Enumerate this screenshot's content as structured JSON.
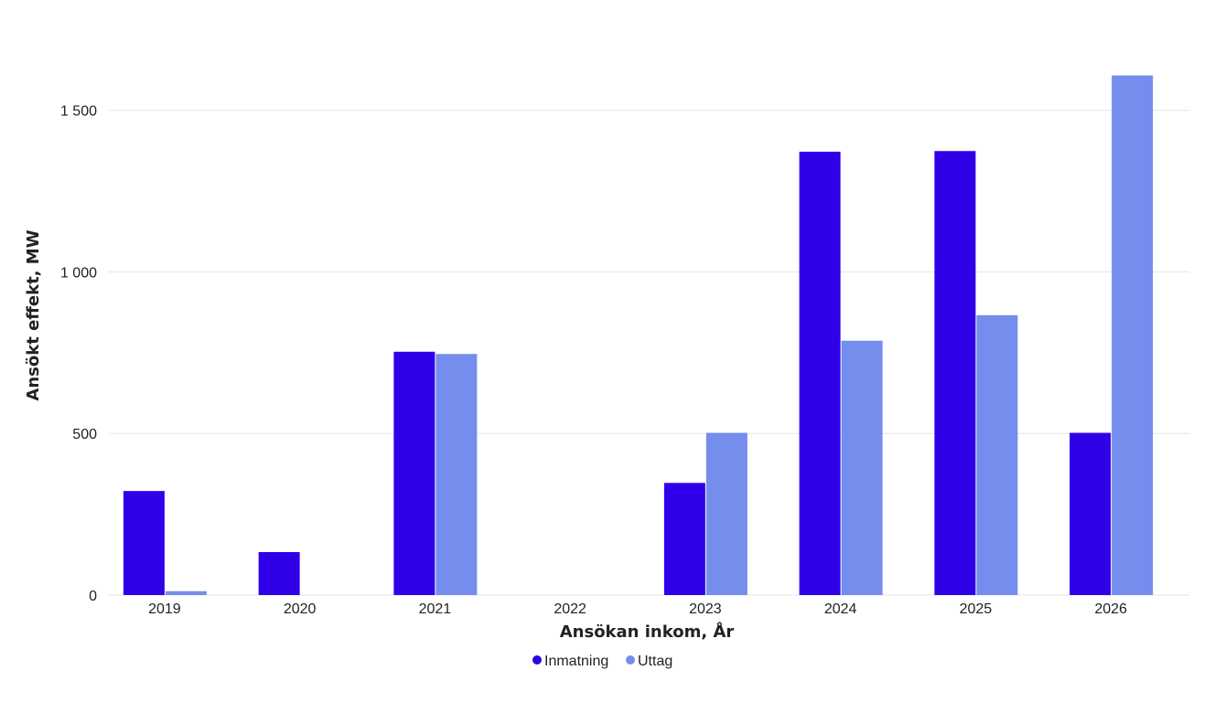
{
  "chart_data": {
    "type": "bar",
    "title": "",
    "xlabel": "Ansökan inkom, År",
    "ylabel": "Ansökt effekt, MW",
    "categories": [
      "2019",
      "2020",
      "2021",
      "2022",
      "2023",
      "2024",
      "2025",
      "2026"
    ],
    "series": [
      {
        "name": "Inmatning",
        "color": "#2f00e8",
        "values": [
          322,
          133,
          753,
          0,
          347,
          1372,
          1374,
          502
        ]
      },
      {
        "name": "Uttag",
        "color": "#758ded",
        "values": [
          12,
          0,
          746,
          0,
          502,
          787,
          866,
          1608
        ]
      }
    ],
    "ylim": [
      0,
      1700
    ],
    "yticks": [
      0,
      500,
      1000,
      1500
    ],
    "ytick_labels": [
      "0",
      "500",
      "1 000",
      "1 500"
    ],
    "grid": true,
    "legend_position": "bottom-center"
  }
}
